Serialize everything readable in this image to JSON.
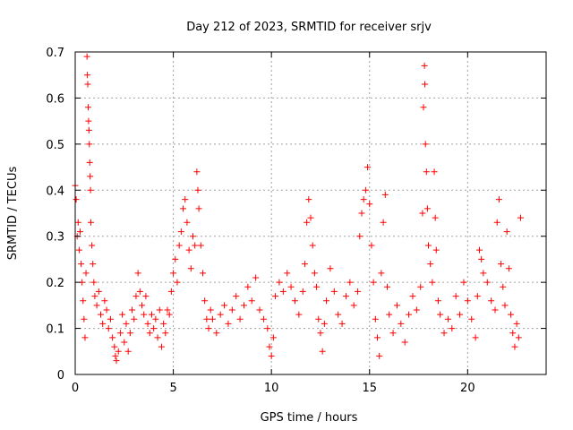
{
  "chart_data": {
    "type": "scatter",
    "title": "Day 212 of 2023, SRMTID for receiver srjv",
    "xlabel": "GPS time / hours",
    "ylabel": "SRMTID / TECUs",
    "xlim": [
      0,
      24
    ],
    "ylim": [
      0,
      0.7
    ],
    "xticks": [
      0,
      5,
      10,
      15,
      20
    ],
    "xtick_labels": [
      "0",
      "5",
      "10",
      "15",
      "20"
    ],
    "yticks": [
      0,
      0.1,
      0.2,
      0.3,
      0.4,
      0.5,
      0.6,
      0.7
    ],
    "ytick_labels": [
      "0",
      "0.1",
      "0.2",
      "0.3",
      "0.4",
      "0.5",
      "0.6",
      "0.7"
    ],
    "grid": true,
    "marker": "plus",
    "color": "#ff0000",
    "series": [
      {
        "name": "SRMTID",
        "points": [
          [
            0.0,
            0.41
          ],
          [
            0.05,
            0.38
          ],
          [
            0.1,
            0.3
          ],
          [
            0.15,
            0.33
          ],
          [
            0.2,
            0.27
          ],
          [
            0.25,
            0.31
          ],
          [
            0.3,
            0.24
          ],
          [
            0.35,
            0.2
          ],
          [
            0.4,
            0.16
          ],
          [
            0.45,
            0.12
          ],
          [
            0.5,
            0.08
          ],
          [
            0.55,
            0.22
          ],
          [
            0.6,
            0.69
          ],
          [
            0.62,
            0.65
          ],
          [
            0.64,
            0.63
          ],
          [
            0.66,
            0.58
          ],
          [
            0.68,
            0.55
          ],
          [
            0.7,
            0.53
          ],
          [
            0.72,
            0.5
          ],
          [
            0.74,
            0.46
          ],
          [
            0.76,
            0.43
          ],
          [
            0.78,
            0.4
          ],
          [
            0.8,
            0.33
          ],
          [
            0.85,
            0.28
          ],
          [
            0.9,
            0.24
          ],
          [
            0.95,
            0.2
          ],
          [
            1.0,
            0.17
          ],
          [
            1.1,
            0.15
          ],
          [
            1.2,
            0.18
          ],
          [
            1.3,
            0.13
          ],
          [
            1.4,
            0.11
          ],
          [
            1.5,
            0.16
          ],
          [
            1.6,
            0.14
          ],
          [
            1.7,
            0.1
          ],
          [
            1.8,
            0.12
          ],
          [
            1.9,
            0.08
          ],
          [
            2.0,
            0.06
          ],
          [
            2.05,
            0.04
          ],
          [
            2.1,
            0.03
          ],
          [
            2.2,
            0.05
          ],
          [
            2.3,
            0.09
          ],
          [
            2.4,
            0.13
          ],
          [
            2.5,
            0.07
          ],
          [
            2.6,
            0.11
          ],
          [
            2.7,
            0.05
          ],
          [
            2.8,
            0.09
          ],
          [
            2.9,
            0.14
          ],
          [
            3.0,
            0.12
          ],
          [
            3.1,
            0.17
          ],
          [
            3.2,
            0.22
          ],
          [
            3.3,
            0.18
          ],
          [
            3.4,
            0.15
          ],
          [
            3.5,
            0.13
          ],
          [
            3.6,
            0.17
          ],
          [
            3.7,
            0.11
          ],
          [
            3.8,
            0.09
          ],
          [
            3.9,
            0.13
          ],
          [
            4.0,
            0.1
          ],
          [
            4.1,
            0.12
          ],
          [
            4.2,
            0.08
          ],
          [
            4.3,
            0.14
          ],
          [
            4.4,
            0.06
          ],
          [
            4.5,
            0.11
          ],
          [
            4.6,
            0.09
          ],
          [
            4.7,
            0.14
          ],
          [
            4.8,
            0.13
          ],
          [
            4.9,
            0.18
          ],
          [
            5.0,
            0.22
          ],
          [
            5.1,
            0.25
          ],
          [
            5.2,
            0.2
          ],
          [
            5.3,
            0.28
          ],
          [
            5.4,
            0.31
          ],
          [
            5.5,
            0.36
          ],
          [
            5.6,
            0.38
          ],
          [
            5.7,
            0.33
          ],
          [
            5.8,
            0.27
          ],
          [
            5.9,
            0.23
          ],
          [
            6.0,
            0.3
          ],
          [
            6.1,
            0.28
          ],
          [
            6.2,
            0.44
          ],
          [
            6.25,
            0.4
          ],
          [
            6.3,
            0.36
          ],
          [
            6.4,
            0.28
          ],
          [
            6.5,
            0.22
          ],
          [
            6.6,
            0.16
          ],
          [
            6.7,
            0.12
          ],
          [
            6.8,
            0.1
          ],
          [
            6.9,
            0.14
          ],
          [
            7.0,
            0.12
          ],
          [
            7.2,
            0.09
          ],
          [
            7.4,
            0.13
          ],
          [
            7.6,
            0.15
          ],
          [
            7.8,
            0.11
          ],
          [
            8.0,
            0.14
          ],
          [
            8.2,
            0.17
          ],
          [
            8.4,
            0.12
          ],
          [
            8.6,
            0.15
          ],
          [
            8.8,
            0.19
          ],
          [
            9.0,
            0.16
          ],
          [
            9.2,
            0.21
          ],
          [
            9.4,
            0.14
          ],
          [
            9.6,
            0.12
          ],
          [
            9.8,
            0.1
          ],
          [
            9.9,
            0.06
          ],
          [
            10.0,
            0.04
          ],
          [
            10.1,
            0.08
          ],
          [
            10.2,
            0.17
          ],
          [
            10.4,
            0.2
          ],
          [
            10.6,
            0.18
          ],
          [
            10.8,
            0.22
          ],
          [
            11.0,
            0.19
          ],
          [
            11.2,
            0.16
          ],
          [
            11.4,
            0.13
          ],
          [
            11.6,
            0.18
          ],
          [
            11.7,
            0.24
          ],
          [
            11.8,
            0.33
          ],
          [
            11.9,
            0.38
          ],
          [
            12.0,
            0.34
          ],
          [
            12.1,
            0.28
          ],
          [
            12.2,
            0.22
          ],
          [
            12.3,
            0.19
          ],
          [
            12.4,
            0.12
          ],
          [
            12.5,
            0.09
          ],
          [
            12.6,
            0.05
          ],
          [
            12.7,
            0.11
          ],
          [
            12.8,
            0.16
          ],
          [
            13.0,
            0.23
          ],
          [
            13.2,
            0.18
          ],
          [
            13.4,
            0.13
          ],
          [
            13.6,
            0.11
          ],
          [
            13.8,
            0.17
          ],
          [
            14.0,
            0.2
          ],
          [
            14.2,
            0.15
          ],
          [
            14.4,
            0.18
          ],
          [
            14.5,
            0.3
          ],
          [
            14.6,
            0.35
          ],
          [
            14.7,
            0.38
          ],
          [
            14.8,
            0.4
          ],
          [
            14.9,
            0.45
          ],
          [
            15.0,
            0.37
          ],
          [
            15.1,
            0.28
          ],
          [
            15.2,
            0.2
          ],
          [
            15.3,
            0.12
          ],
          [
            15.4,
            0.08
          ],
          [
            15.5,
            0.04
          ],
          [
            15.6,
            0.22
          ],
          [
            15.7,
            0.33
          ],
          [
            15.8,
            0.39
          ],
          [
            15.9,
            0.19
          ],
          [
            16.0,
            0.13
          ],
          [
            16.2,
            0.09
          ],
          [
            16.4,
            0.15
          ],
          [
            16.6,
            0.11
          ],
          [
            16.8,
            0.07
          ],
          [
            17.0,
            0.13
          ],
          [
            17.2,
            0.17
          ],
          [
            17.4,
            0.14
          ],
          [
            17.6,
            0.19
          ],
          [
            17.7,
            0.35
          ],
          [
            17.75,
            0.58
          ],
          [
            17.8,
            0.67
          ],
          [
            17.82,
            0.63
          ],
          [
            17.85,
            0.5
          ],
          [
            17.9,
            0.44
          ],
          [
            17.95,
            0.36
          ],
          [
            18.0,
            0.28
          ],
          [
            18.1,
            0.24
          ],
          [
            18.2,
            0.2
          ],
          [
            18.3,
            0.44
          ],
          [
            18.35,
            0.34
          ],
          [
            18.4,
            0.27
          ],
          [
            18.5,
            0.16
          ],
          [
            18.6,
            0.13
          ],
          [
            18.8,
            0.09
          ],
          [
            19.0,
            0.12
          ],
          [
            19.2,
            0.1
          ],
          [
            19.4,
            0.17
          ],
          [
            19.6,
            0.13
          ],
          [
            19.8,
            0.2
          ],
          [
            20.0,
            0.16
          ],
          [
            20.2,
            0.12
          ],
          [
            20.4,
            0.08
          ],
          [
            20.5,
            0.17
          ],
          [
            20.6,
            0.27
          ],
          [
            20.7,
            0.25
          ],
          [
            20.8,
            0.22
          ],
          [
            21.0,
            0.2
          ],
          [
            21.2,
            0.16
          ],
          [
            21.4,
            0.14
          ],
          [
            21.5,
            0.33
          ],
          [
            21.6,
            0.38
          ],
          [
            21.7,
            0.24
          ],
          [
            21.8,
            0.19
          ],
          [
            21.9,
            0.15
          ],
          [
            22.0,
            0.31
          ],
          [
            22.1,
            0.23
          ],
          [
            22.2,
            0.13
          ],
          [
            22.3,
            0.09
          ],
          [
            22.4,
            0.06
          ],
          [
            22.5,
            0.11
          ],
          [
            22.6,
            0.08
          ],
          [
            22.7,
            0.34
          ]
        ]
      }
    ]
  }
}
